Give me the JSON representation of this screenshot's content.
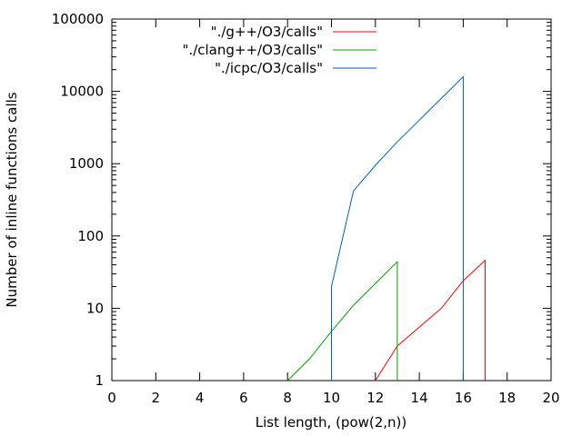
{
  "chart_data": {
    "type": "line",
    "xlabel": "List length, (pow(2,n))",
    "ylabel": "Number of inline functions calls",
    "xlim": [
      0,
      20
    ],
    "ylim": [
      1,
      100000
    ],
    "yscale": "log",
    "grid": false,
    "legend_position": "top-right",
    "x_ticks": [
      0,
      2,
      4,
      6,
      8,
      10,
      12,
      14,
      16,
      18,
      20
    ],
    "x_tick_labels": [
      "0",
      "2",
      "4",
      "6",
      "8",
      "10",
      "12",
      "14",
      "16",
      "18",
      "20"
    ],
    "y_ticks": [
      1,
      10,
      100,
      1000,
      10000,
      100000
    ],
    "y_tick_labels": [
      "1",
      "10",
      "100",
      "1000",
      "10000",
      "100000"
    ],
    "series": [
      {
        "name": "\"./g++/O3/calls\"",
        "color": "#ff0000",
        "x": [
          12,
          13,
          14,
          15,
          16,
          17,
          17
        ],
        "y": [
          1,
          3,
          5.5,
          10,
          24,
          46,
          1
        ]
      },
      {
        "name": "\"./clang++/O3/calls\"",
        "color": "#00a000",
        "x": [
          8,
          9,
          10,
          11,
          12,
          13,
          13
        ],
        "y": [
          1,
          2,
          4.8,
          11,
          22,
          44,
          1
        ]
      },
      {
        "name": "\"./icpc/O3/calls\"",
        "color": "#0060ad",
        "x": [
          10,
          10,
          11,
          12,
          13,
          14,
          15,
          16,
          16
        ],
        "y": [
          1,
          20,
          420,
          950,
          2000,
          4000,
          8000,
          16000,
          1
        ]
      }
    ]
  }
}
